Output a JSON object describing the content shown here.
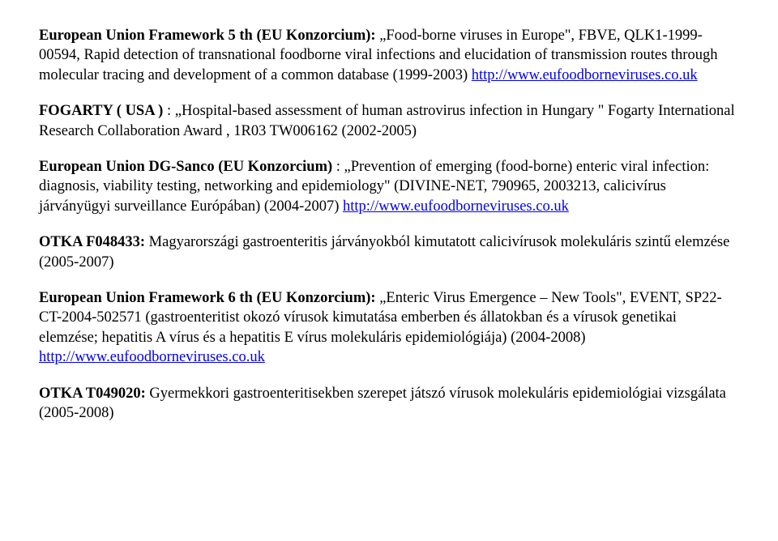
{
  "p1": {
    "lead": "European Union Framework 5 th (EU Konzorcium):",
    "rest": " „Food-borne viruses in Europe\", FBVE, QLK1-1999-00594, Rapid detection of transnational foodborne viral infections and elucidation of transmission routes through molecular tracing and development of a common database (1999-2003) ",
    "url": "http://www.eufoodborneviruses.co.uk"
  },
  "p2": {
    "lead": "FOGARTY ( USA )",
    "rest": " : „Hospital-based assessment of human astrovirus infection in Hungary \" Fogarty International Research Collaboration Award , 1R03 TW006162 (2002-2005)"
  },
  "p3": {
    "lead": "European Union DG-Sanco (EU Konzorcium)",
    "rest": " : „Prevention of emerging (food-borne) enteric viral infection: diagnosis, viability testing, networking and epidemiology\" (DIVINE-NET, 790965, 2003213, calicivírus járványügyi surveillance Európában) (2004-2007) ",
    "url": "http://www.eufoodborneviruses.co.uk"
  },
  "p4": {
    "lead": "OTKA F048433:",
    "rest": " Magyarországi gastroenteritis járványokból kimutatott calicivírusok molekuláris szintű elemzése (2005-2007)"
  },
  "p5": {
    "lead": "European Union Framework 6 th (EU Konzorcium):",
    "rest": " „Enteric Virus Emergence – New Tools\", EVENT, SP22-CT-2004-502571 (gastroenteritist okozó vírusok kimutatása emberben és állatokban és a vírusok genetikai elemzése; hepatitis A vírus és a hepatitis E vírus molekuláris epidemiológiája) (2004-2008) ",
    "url": "http://www.eufoodborneviruses.co.uk"
  },
  "p6": {
    "lead": "OTKA T049020:",
    "rest": " Gyermekkori gastroenteritisekben szerepet játszó vírusok molekuláris epidemiológiai vizsgálata (2005-2008)"
  }
}
